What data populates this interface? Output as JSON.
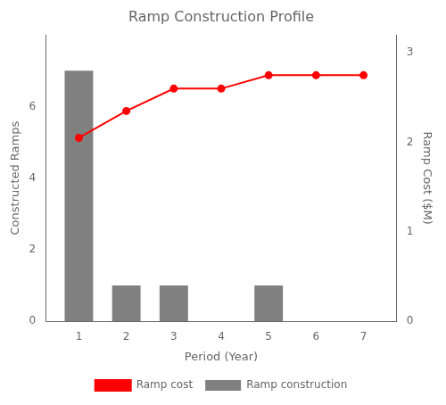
{
  "chart_data": {
    "type": "bar",
    "title": "Ramp Construction Profile",
    "xlabel": "Period (Year)",
    "ylabel": "Constructed Ramps",
    "y2label": "Ramp Cost ($M)",
    "x": [
      1,
      2,
      3,
      4,
      5,
      6,
      7
    ],
    "series": [
      {
        "name": "Ramp construction",
        "type": "bar",
        "color": "#808080",
        "values": [
          7,
          1,
          1,
          0,
          1,
          0,
          0
        ]
      },
      {
        "name": "Ramp cost",
        "type": "line",
        "color": "#ff0000",
        "marker": "circle",
        "axis": "y2",
        "values": [
          2.05,
          2.35,
          2.6,
          2.6,
          2.75,
          2.75,
          2.75
        ]
      }
    ],
    "xlim": [
      0.3,
      7.7
    ],
    "xticks": [
      1,
      2,
      3,
      4,
      5,
      6,
      7
    ],
    "ylim": [
      0,
      8
    ],
    "yticks": [
      0,
      2,
      4,
      6
    ],
    "y2lim": [
      0,
      3.2
    ],
    "y2ticks": [
      0,
      1,
      2,
      3
    ],
    "grid": false,
    "legend": "bottom"
  }
}
